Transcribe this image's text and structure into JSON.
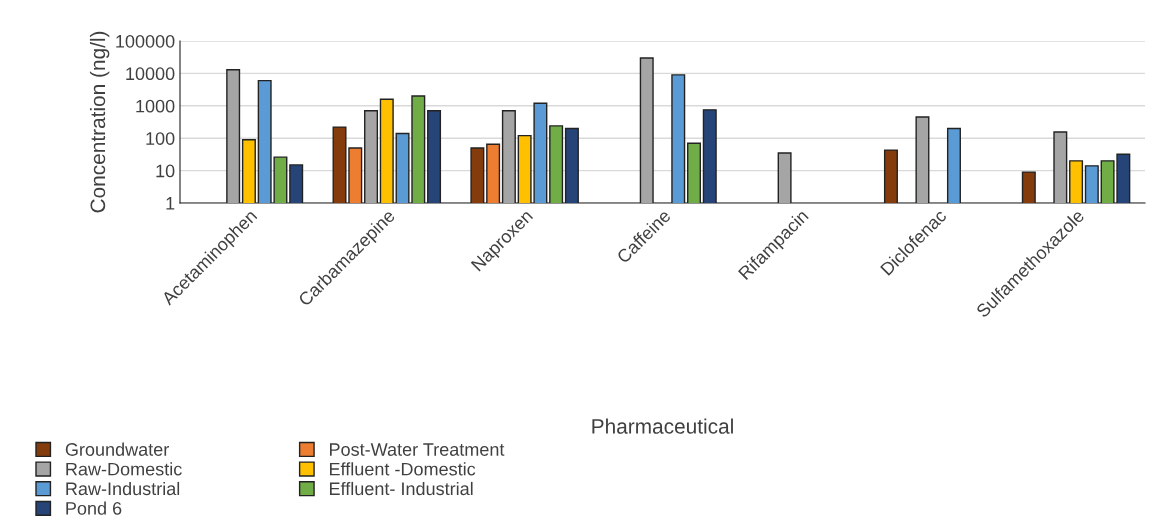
{
  "chart_data": {
    "type": "bar",
    "xlabel": "Pharmaceutical",
    "ylabel": "Concentration (ng/l)",
    "log": true,
    "grid": "y",
    "legend": "bottom",
    "categories": [
      "Acetaminophen",
      "Carbamazepine",
      "Naproxen",
      "Caffeine",
      "Rifampacin",
      "Diclofenac",
      "Sulfamethoxazole"
    ],
    "ylim": [
      1,
      100000
    ],
    "yticks": [
      1,
      10,
      100,
      1000,
      10000,
      100000
    ],
    "series": [
      {
        "name": "Groundwater",
        "color": "#843c0c",
        "values": [
          null,
          220,
          50,
          null,
          null,
          43,
          9
        ]
      },
      {
        "name": "Post-Water Treatment",
        "color": "#ed7d31",
        "values": [
          null,
          50,
          65,
          null,
          null,
          null,
          null
        ]
      },
      {
        "name": "Raw-Domestic",
        "color": "#a5a5a5",
        "values": [
          13000,
          700,
          700,
          30000,
          35,
          450,
          155
        ]
      },
      {
        "name": "Effluent -Domestic",
        "color": "#ffc000",
        "values": [
          90,
          1600,
          120,
          null,
          null,
          null,
          20
        ]
      },
      {
        "name": "Raw-Industrial",
        "color": "#5b9bd5",
        "values": [
          6000,
          140,
          1200,
          9000,
          null,
          200,
          14
        ]
      },
      {
        "name": "Effluent- Industrial",
        "color": "#70ad47",
        "values": [
          26,
          2000,
          240,
          70,
          null,
          null,
          20
        ]
      },
      {
        "name": "Pond 6",
        "color": "#264478",
        "values": [
          15,
          700,
          200,
          750,
          null,
          null,
          32
        ]
      }
    ]
  }
}
